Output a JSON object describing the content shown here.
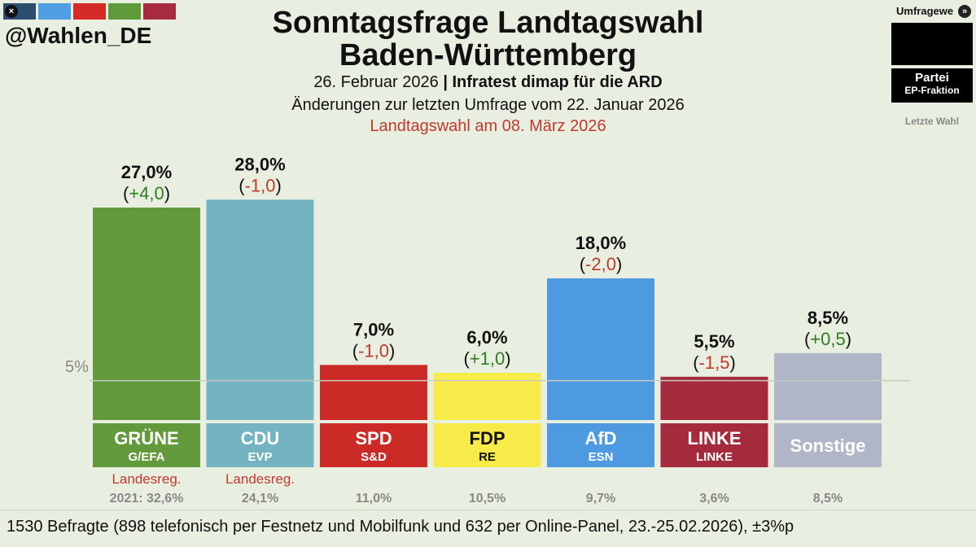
{
  "header": {
    "handle": "@Wahlen_DE",
    "title_line1": "Sonntagsfrage Landtagswahl",
    "title_line2": "Baden-Württemberg",
    "date": "26. Februar 2026",
    "separator": "|",
    "institute": "Infratest dimap für die ARD",
    "changes_note": "Änderungen zur letzten Umfrage vom 22. Januar 2026",
    "election_note": "Landtagswahl am 08. März 2026"
  },
  "swatch_colors": [
    "#2c4e6e",
    "#4f9fe4",
    "#d42b27",
    "#5e9a3a",
    "#a72a3e"
  ],
  "legend": {
    "head": "Umfragewe",
    "party": "Partei",
    "fraction": "EP-Fraktion",
    "last_election": "Letzte Wahl"
  },
  "threshold_label": "5%",
  "footer": {
    "sample": "1530 Befragte (898 telefonisch per Festnetz und Mobilfunk und 632 per Online-Panel, 23.-25.02.2026), ±3%p"
  },
  "chart_data": {
    "type": "bar",
    "ylim": [
      0,
      30
    ],
    "threshold": 5,
    "categories": [
      "GRÜNE",
      "CDU",
      "SPD",
      "FDP",
      "AfD",
      "LINKE",
      "Sonstige"
    ],
    "values": [
      27.0,
      28.0,
      7.0,
      6.0,
      18.0,
      5.5,
      8.5
    ],
    "value_labels": [
      "27,0%",
      "28,0%",
      "7,0%",
      "6,0%",
      "18,0%",
      "5,5%",
      "8,5%"
    ],
    "changes": [
      "+4,0",
      "-1,0",
      "-1,0",
      "+1,0",
      "-2,0",
      "-1,5",
      "+0,5"
    ],
    "ep_fractions": [
      "G/EFA",
      "EVP",
      "S&D",
      "RE",
      "ESN",
      "LINKE",
      ""
    ],
    "gov_labels": [
      "Landesreg.",
      "Landesreg.",
      "",
      "",
      "",
      "",
      ""
    ],
    "last_election": [
      "2021: 32,6%",
      "24,1%",
      "11,0%",
      "10,5%",
      "9,7%",
      "3,6%",
      "8,5%"
    ],
    "colors": [
      "#629a3b",
      "#74b3c1",
      "#cc2a26",
      "#f7eb4a",
      "#4e9ae0",
      "#a42a3c",
      "#b0b6c8"
    ],
    "label_text_colors": [
      "#ffffff",
      "#ffffff",
      "#ffffff",
      "#111111",
      "#ffffff",
      "#ffffff",
      "#ffffff"
    ],
    "positive_color": "#2e7d1f",
    "negative_color": "#c0392b"
  }
}
